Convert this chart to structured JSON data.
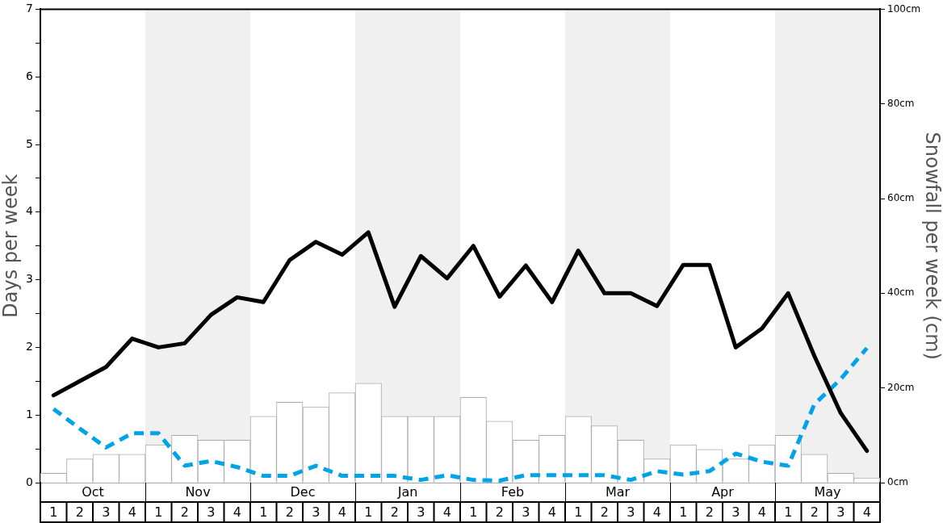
{
  "chart_data": {
    "type": "line",
    "ylabel": "Days per week",
    "y2label": "Snowfall per week (cm)",
    "categories": [
      "1",
      "2",
      "3",
      "4",
      "1",
      "2",
      "3",
      "4",
      "1",
      "2",
      "3",
      "4",
      "1",
      "2",
      "3",
      "4",
      "1",
      "2",
      "3",
      "4",
      "1",
      "2",
      "3",
      "4",
      "1",
      "2",
      "3",
      "4",
      "1",
      "2",
      "3",
      "4"
    ],
    "annotations": [
      "Oct",
      "Nov",
      "Dec",
      "Jan",
      "Feb",
      "Mar",
      "Apr",
      "May"
    ],
    "ylim": [
      0,
      7
    ],
    "yticks": [
      0,
      {
        "value": 0.5,
        "label": null
      },
      1,
      {
        "value": 1.5,
        "label": null
      },
      2,
      {
        "value": 2.5,
        "label": null
      },
      3,
      {
        "value": 3.5,
        "label": null
      },
      4,
      {
        "value": 4.5,
        "label": null
      },
      5,
      {
        "value": 5.5,
        "label": null
      },
      6,
      {
        "value": 6.5,
        "label": null
      },
      7
    ],
    "y2lim": [
      0,
      100
    ],
    "y2ticks": [
      {
        "value": 0,
        "label": "0cm"
      },
      {
        "value": 20,
        "label": "20cm"
      },
      {
        "value": 40,
        "label": "40cm"
      },
      {
        "value": 60,
        "label": "60cm"
      },
      {
        "value": 80,
        "label": "80cm"
      },
      {
        "value": 100,
        "label": "100cm"
      }
    ],
    "marker": "none",
    "series": [
      {
        "type": "bar",
        "axis": "y2",
        "color": "#ffffff",
        "values": [
          2,
          5,
          6,
          6,
          8,
          10,
          9,
          9,
          14,
          17,
          16,
          19,
          21,
          14,
          14,
          14,
          18,
          13,
          9,
          10,
          14,
          12,
          9,
          5,
          8,
          7,
          5,
          8,
          10,
          6,
          2,
          1
        ]
      },
      {
        "axis": "y",
        "color": "#000000",
        "line_style": "solid",
        "values": [
          1.29,
          1.5,
          1.71,
          2.13,
          2.0,
          2.06,
          2.48,
          2.74,
          2.67,
          3.29,
          3.56,
          3.37,
          3.7,
          2.6,
          3.35,
          3.02,
          3.5,
          2.75,
          3.21,
          2.67,
          3.43,
          2.8,
          2.8,
          2.61,
          3.22,
          3.22,
          2.0,
          2.28,
          2.8,
          1.87,
          1.03,
          0.47
        ]
      },
      {
        "axis": "y",
        "color": "#00a2e8",
        "line_style": "dashed",
        "values": [
          1.09,
          0.8,
          0.52,
          0.73,
          0.73,
          0.25,
          0.32,
          0.23,
          0.1,
          0.1,
          0.25,
          0.1,
          0.1,
          0.1,
          0.04,
          0.11,
          0.04,
          0.03,
          0.11,
          0.11,
          0.11,
          0.11,
          0.04,
          0.17,
          0.12,
          0.17,
          0.43,
          0.31,
          0.25,
          1.16,
          1.53,
          1.99
        ]
      }
    ]
  }
}
